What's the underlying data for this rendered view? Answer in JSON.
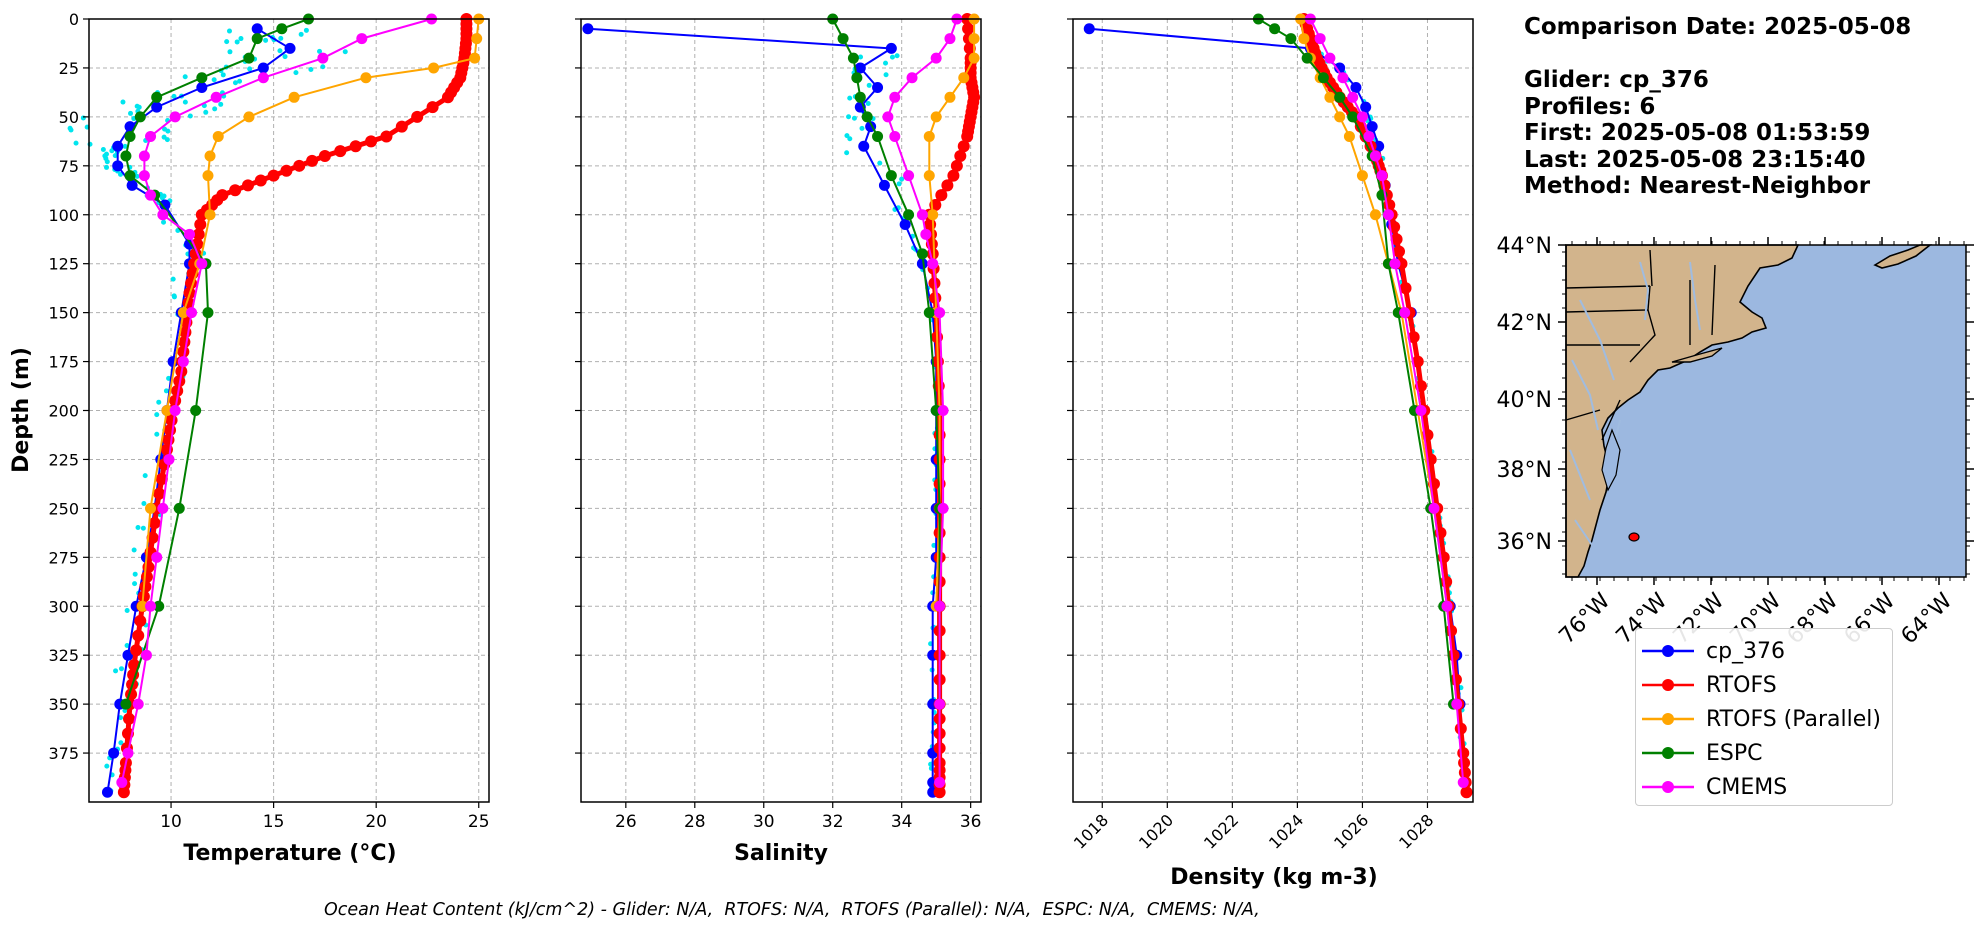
{
  "colors": {
    "cp_376": "#0000ff",
    "RTOFS": "#ff0000",
    "RTOFS (Parallel)": "#ffa500",
    "ESPC": "#008000",
    "CMEMS": "#ff00ff",
    "profile_dots": "#00e5ee",
    "land": "#d2b48c",
    "ocean": "#9cb8e0",
    "rivers": "#a0bce0"
  },
  "info": {
    "date_line": "Comparison Date: 2025-05-08",
    "glider_line": "Glider: cp_376",
    "profiles_line": "Profiles: 6",
    "first_line": "First: 2025-05-08 01:53:59",
    "last_line": "Last: 2025-05-08 23:15:40",
    "method_line": "Method: Nearest-Neighbor"
  },
  "footer": {
    "ohc_text": "Ocean Heat Content (kJ/cm^2) - Glider: N/A,  RTOFS: N/A,  RTOFS (Parallel): N/A,  ESPC: N/A,  CMEMS: N/A,"
  },
  "legend": [
    {
      "label": "cp_376",
      "color": "#0000ff"
    },
    {
      "label": "RTOFS",
      "color": "#ff0000"
    },
    {
      "label": "RTOFS (Parallel)",
      "color": "#ffa500"
    },
    {
      "label": "ESPC",
      "color": "#008000"
    },
    {
      "label": "CMEMS",
      "color": "#ff00ff"
    }
  ],
  "map": {
    "lat_ticks": [
      "44°N",
      "42°N",
      "40°N",
      "38°N",
      "36°N"
    ],
    "lon_ticks": [
      "76°W",
      "74°W",
      "72°W",
      "70°W",
      "68°W",
      "66°W",
      "64°W"
    ],
    "glider_position": {
      "lon": -74.3,
      "lat": 36.2
    }
  },
  "chart_data": [
    {
      "type": "line",
      "title": "",
      "xlabel": "Temperature (°C)",
      "ylabel": "Depth (m)",
      "xlim": [
        6,
        25.5
      ],
      "ylim": [
        400,
        0
      ],
      "xticks": [
        10,
        15,
        20,
        25
      ],
      "yticks": [
        0,
        25,
        50,
        75,
        100,
        125,
        150,
        175,
        200,
        225,
        250,
        275,
        300,
        325,
        350,
        375
      ],
      "grid": true,
      "series": [
        {
          "name": "cp_376",
          "x": [
            14.2,
            15.8,
            14.5,
            11.5,
            9.3,
            8.0,
            7.4,
            7.4,
            8.1,
            9.7,
            10.9,
            10.9,
            10.5,
            10.1,
            9.8,
            9.5,
            9.2,
            8.8,
            8.3,
            7.9,
            7.5,
            7.2,
            6.9
          ],
          "y": [
            5,
            15,
            25,
            35,
            45,
            55,
            65,
            75,
            85,
            95,
            115,
            125,
            150,
            175,
            200,
            225,
            250,
            275,
            300,
            325,
            350,
            375,
            395
          ]
        },
        {
          "name": "RTOFS",
          "x": [
            24.4,
            24.4,
            24.3,
            24.1,
            23.5,
            20.5,
            17.5,
            15,
            12.5,
            11.5,
            11.2,
            10.9,
            10.7,
            10.5,
            10.1,
            9.8,
            9.3,
            8.9,
            8.6,
            8.2,
            8.0,
            7.8,
            7.7
          ],
          "y": [
            0,
            10,
            20,
            30,
            40,
            60,
            70,
            80,
            90,
            100,
            120,
            140,
            160,
            180,
            200,
            220,
            250,
            280,
            300,
            330,
            350,
            380,
            395
          ]
        },
        {
          "name": "RTOFS (Parallel)",
          "x": [
            25.0,
            24.9,
            24.8,
            22.8,
            19.5,
            16,
            13.8,
            12.3,
            11.9,
            11.8,
            11.9,
            11.4,
            10.6,
            9.8,
            9.0,
            8.6
          ],
          "y": [
            0,
            10,
            20,
            25,
            30,
            40,
            50,
            60,
            70,
            80,
            100,
            125,
            150,
            200,
            250,
            300
          ]
        },
        {
          "name": "ESPC",
          "x": [
            16.7,
            15.4,
            14.2,
            13.8,
            11.5,
            9.3,
            8.5,
            8.0,
            7.8,
            8.0,
            9.2,
            11.7,
            11.8,
            11.2,
            10.4,
            9.4,
            7.8
          ],
          "y": [
            0,
            5,
            10,
            20,
            30,
            40,
            50,
            60,
            70,
            80,
            90,
            125,
            150,
            200,
            250,
            300,
            350
          ]
        },
        {
          "name": "CMEMS",
          "x": [
            22.7,
            19.3,
            17.4,
            14.5,
            12.2,
            10.2,
            9.0,
            8.7,
            8.7,
            9.0,
            9.6,
            10.9,
            11.5,
            11.0,
            10.6,
            10.2,
            9.9,
            9.6,
            9.3,
            9.0,
            8.8,
            8.4,
            7.9,
            7.6
          ],
          "y": [
            0,
            10,
            20,
            30,
            40,
            50,
            60,
            70,
            80,
            90,
            100,
            110,
            125,
            150,
            175,
            200,
            225,
            250,
            275,
            300,
            325,
            350,
            375,
            390
          ]
        }
      ]
    },
    {
      "type": "line",
      "title": "",
      "xlabel": "Salinity",
      "ylabel": "",
      "xlim": [
        24.7,
        36.3
      ],
      "ylim": [
        400,
        0
      ],
      "xticks": [
        26,
        28,
        30,
        32,
        34,
        36
      ],
      "grid": true,
      "series": [
        {
          "name": "cp_376",
          "x": [
            24.9,
            33.7,
            32.8,
            33.3,
            32.8,
            33.1,
            32.9,
            33.5,
            34.1,
            34.6,
            34.9,
            35.0,
            35.0,
            35.0,
            35.0,
            35.0,
            34.9,
            34.9,
            34.9,
            34.9,
            34.9,
            34.9
          ],
          "y": [
            5,
            15,
            25,
            35,
            45,
            55,
            65,
            85,
            105,
            125,
            150,
            175,
            200,
            225,
            250,
            275,
            300,
            325,
            350,
            375,
            390,
            395
          ]
        },
        {
          "name": "RTOFS",
          "x": [
            35.9,
            36.0,
            36.0,
            36.1,
            36.0,
            35.9,
            35.5,
            34.8,
            34.9,
            35.0,
            35.1,
            35.1,
            35.1,
            35.1,
            35.1,
            35.1
          ],
          "y": [
            0,
            20,
            30,
            40,
            50,
            60,
            80,
            100,
            120,
            150,
            200,
            250,
            300,
            350,
            380,
            395
          ]
        },
        {
          "name": "RTOFS (Parallel)",
          "x": [
            36.1,
            36.1,
            36.1,
            35.8,
            35.4,
            35.0,
            34.8,
            34.8,
            34.9,
            35.0,
            35.1,
            35.1,
            35.0
          ],
          "y": [
            0,
            10,
            20,
            30,
            40,
            50,
            60,
            80,
            100,
            150,
            200,
            250,
            300
          ]
        },
        {
          "name": "ESPC",
          "x": [
            32.0,
            32.3,
            32.6,
            32.7,
            32.8,
            33.0,
            33.3,
            33.7,
            34.2,
            34.6,
            34.8,
            35.0,
            35.1,
            35.1,
            35.1
          ],
          "y": [
            0,
            10,
            20,
            30,
            40,
            50,
            60,
            80,
            100,
            120,
            150,
            200,
            250,
            300,
            350
          ]
        },
        {
          "name": "CMEMS",
          "x": [
            35.6,
            35.4,
            35.0,
            34.3,
            33.8,
            33.6,
            33.8,
            34.2,
            34.6,
            34.7,
            34.9,
            35.1,
            35.2,
            35.2,
            35.1,
            35.1,
            35.1
          ],
          "y": [
            0,
            10,
            20,
            30,
            40,
            50,
            60,
            80,
            100,
            110,
            125,
            150,
            200,
            250,
            300,
            350,
            390
          ]
        }
      ]
    },
    {
      "type": "line",
      "title": "",
      "xlabel": "Density (kg m-3)",
      "ylabel": "",
      "xlim": [
        1017.1,
        1029.4
      ],
      "ylim": [
        400,
        0
      ],
      "xticks": [
        1018,
        1020,
        1022,
        1024,
        1026,
        1028
      ],
      "grid": true,
      "series": [
        {
          "name": "cp_376",
          "x": [
            1017.6,
            1024.4,
            1025.3,
            1025.8,
            1026.1,
            1026.3,
            1026.5,
            1026.7,
            1026.9,
            1027.1,
            1027.5,
            1027.7,
            1027.9,
            1028.1,
            1028.3,
            1028.5,
            1028.7,
            1028.9,
            1029.0,
            1029.1,
            1029.2
          ],
          "y": [
            5,
            15,
            25,
            35,
            45,
            55,
            65,
            85,
            105,
            125,
            150,
            175,
            200,
            225,
            250,
            275,
            300,
            325,
            350,
            375,
            395
          ]
        },
        {
          "name": "RTOFS",
          "x": [
            1024.2,
            1024.4,
            1024.6,
            1024.9,
            1025.3,
            1025.8,
            1026.4,
            1026.6,
            1026.9,
            1027.2,
            1027.7,
            1028.1,
            1028.5,
            1028.8,
            1029.1,
            1029.2
          ],
          "y": [
            0,
            10,
            20,
            30,
            40,
            50,
            70,
            80,
            100,
            125,
            175,
            225,
            275,
            325,
            375,
            395
          ]
        },
        {
          "name": "RTOFS (Parallel)",
          "x": [
            1024.1,
            1024.2,
            1024.4,
            1024.7,
            1025.0,
            1025.3,
            1025.6,
            1026.0,
            1026.4,
            1026.8,
            1027.2,
            1027.7,
            1028.2,
            1028.6
          ],
          "y": [
            0,
            10,
            20,
            30,
            40,
            50,
            60,
            80,
            100,
            125,
            150,
            200,
            250,
            300
          ]
        },
        {
          "name": "ESPC",
          "x": [
            1022.8,
            1023.3,
            1023.8,
            1024.3,
            1024.8,
            1025.3,
            1025.7,
            1026.3,
            1026.6,
            1026.8,
            1027.1,
            1027.6,
            1028.1,
            1028.5,
            1028.8
          ],
          "y": [
            0,
            5,
            10,
            20,
            30,
            40,
            50,
            70,
            90,
            125,
            150,
            200,
            250,
            300,
            350
          ]
        },
        {
          "name": "CMEMS",
          "x": [
            1024.4,
            1024.7,
            1025.0,
            1025.4,
            1025.7,
            1026.0,
            1026.2,
            1026.4,
            1026.6,
            1026.8,
            1027.0,
            1027.3,
            1027.8,
            1028.2,
            1028.6,
            1028.9,
            1029.1
          ],
          "y": [
            0,
            10,
            20,
            30,
            40,
            50,
            60,
            70,
            80,
            100,
            125,
            150,
            200,
            250,
            300,
            350,
            390
          ]
        }
      ]
    }
  ]
}
